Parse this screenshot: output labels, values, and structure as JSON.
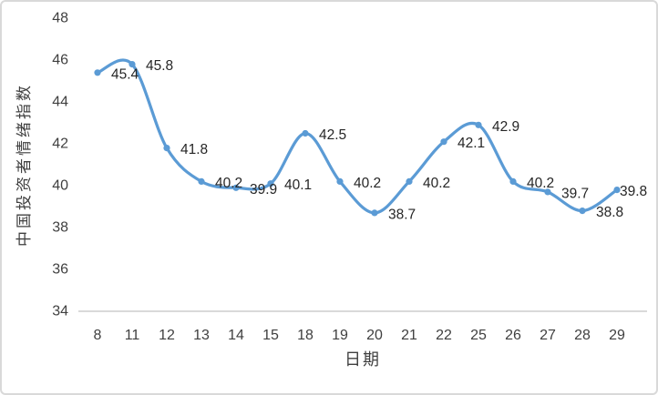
{
  "window": {
    "background_color": "#ffffff",
    "border_color": "#d9d9d9"
  },
  "chart_data": {
    "type": "line",
    "title": "",
    "xlabel": "日期",
    "ylabel": "中国投资者情绪指数",
    "categories": [
      "8",
      "11",
      "12",
      "13",
      "14",
      "15",
      "18",
      "19",
      "20",
      "21",
      "22",
      "25",
      "26",
      "27",
      "28",
      "29"
    ],
    "values": [
      45.4,
      45.8,
      41.8,
      40.2,
      39.9,
      40.1,
      42.5,
      40.2,
      38.7,
      40.2,
      42.1,
      42.9,
      40.2,
      39.7,
      38.8,
      39.8
    ],
    "data_labels": [
      "45.4",
      "45.8",
      "41.8",
      "40.2",
      "39.9",
      "40.1",
      "42.5",
      "40.2",
      "38.7",
      "40.2",
      "42.1",
      "42.9",
      "40.2",
      "39.7",
      "38.8",
      "39.8"
    ],
    "ylim": [
      34,
      48
    ],
    "ytick_interval": 2,
    "yticks": [
      "34",
      "36",
      "38",
      "40",
      "42",
      "44",
      "46",
      "48"
    ],
    "grid": false,
    "legend_position": "none",
    "smooth_line": true,
    "colors": {
      "line": "#5B9BD5",
      "marker": "#5B9BD5",
      "tick_text": "#404040",
      "data_label_text": "#262626",
      "axis_line": "#d9d9d9"
    }
  }
}
